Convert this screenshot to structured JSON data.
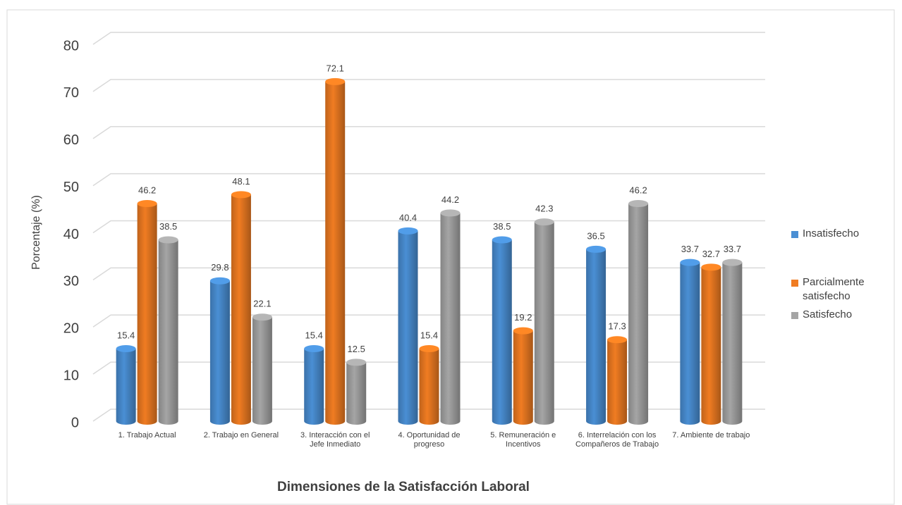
{
  "chart_data": {
    "type": "bar",
    "y_label": "Porcentaje (%)",
    "x_label": "Dimensiones de la Satisfacción Laboral",
    "categories": [
      "1.  Trabajo Actual",
      "2.  Trabajo en General",
      "3.  Interacción con el Jefe Inmediato",
      "4.  Oportunidad de progreso",
      "5.  Remuneración e Incentivos",
      "6.  Interrelación con los Compañeros de Trabajo",
      "7.  Ambiente de trabajo"
    ],
    "series": [
      {
        "name": "Insatisfecho",
        "color": "#4a8fd4",
        "values": [
          15.4,
          29.8,
          15.4,
          40.4,
          38.5,
          36.5,
          33.7
        ]
      },
      {
        "name": "Parcialmente satisfecho",
        "color": "#f07c22",
        "values": [
          46.2,
          48.1,
          72.1,
          15.4,
          19.2,
          17.3,
          32.7
        ]
      },
      {
        "name": "Satisfecho",
        "color": "#a5a5a5",
        "values": [
          38.5,
          22.1,
          12.5,
          44.2,
          42.3,
          46.2,
          33.7
        ]
      }
    ],
    "ylim": [
      0,
      80
    ],
    "yticks": [
      0,
      10,
      20,
      30,
      40,
      50,
      60,
      70,
      80
    ],
    "grid": true,
    "legend": "right"
  }
}
